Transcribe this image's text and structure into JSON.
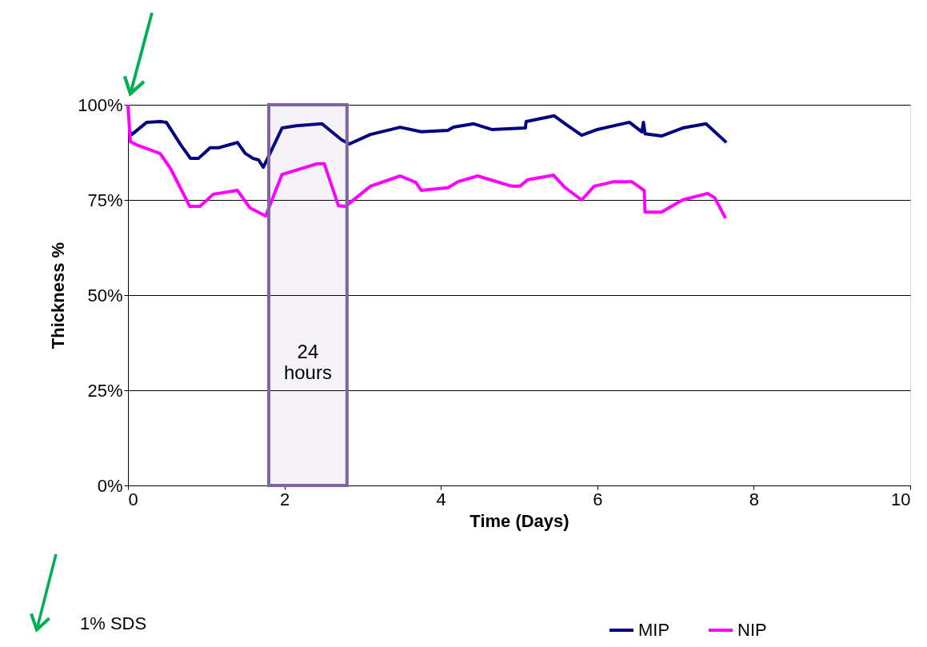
{
  "chart_data": {
    "type": "line",
    "xlabel": "Time (Days)",
    "ylabel": "Thickness %",
    "xlim": [
      0,
      10
    ],
    "xticks": [
      0,
      2,
      4,
      6,
      8,
      10
    ],
    "ylim": [
      0,
      100
    ],
    "yticks": [
      {
        "value": 0,
        "label": "0%"
      },
      {
        "value": 25,
        "label": "25%"
      },
      {
        "value": 50,
        "label": "50%"
      },
      {
        "value": 75,
        "label": "75%"
      },
      {
        "value": 100,
        "label": "100%"
      }
    ],
    "grid": "y",
    "legend": "bottom right",
    "line_style": "solid",
    "marker": "none",
    "series": [
      {
        "name": "MIP",
        "color": "#000080",
        "x": [
          0.02,
          0.05,
          0.24,
          0.41,
          0.49,
          0.68,
          0.8,
          0.9,
          1.05,
          1.16,
          1.4,
          1.5,
          1.6,
          1.67,
          1.73,
          1.79,
          1.97,
          2.15,
          2.48,
          2.73,
          2.83,
          3.1,
          3.48,
          3.75,
          4.09,
          4.16,
          4.42,
          4.65,
          5.08,
          5.09,
          5.45,
          5.59,
          5.8,
          6.0,
          6.41,
          6.57,
          6.59,
          6.61,
          6.82,
          7.09,
          7.39,
          7.65
        ],
        "values": [
          93,
          92.2,
          95.4,
          95.6,
          95.4,
          89.3,
          85.9,
          85.9,
          88.7,
          88.7,
          90.1,
          87.2,
          85.9,
          85.5,
          83.6,
          86.1,
          93.9,
          94.5,
          95,
          90.8,
          89.7,
          92.2,
          94.1,
          92.9,
          93.3,
          94.1,
          95,
          93.5,
          93.9,
          95.6,
          97.1,
          95,
          92,
          93.5,
          95.4,
          92.9,
          95.4,
          92.4,
          91.8,
          93.9,
          95,
          90.1
        ]
      },
      {
        "name": "NIP",
        "color": "#ff00ff",
        "x": [
          0,
          0.03,
          0.13,
          0.41,
          0.54,
          0.79,
          0.92,
          1.09,
          1.4,
          1.56,
          1.76,
          1.97,
          2.42,
          2.51,
          2.69,
          2.78,
          3.1,
          3.48,
          3.68,
          3.75,
          4.09,
          4.22,
          4.47,
          4.63,
          4.91,
          5.01,
          5.11,
          5.44,
          5.59,
          5.8,
          5.96,
          6.21,
          6.44,
          6.6,
          6.61,
          6.82,
          7.09,
          7.41,
          7.5,
          7.64
        ],
        "values": [
          100,
          90.3,
          89.3,
          87.2,
          83.4,
          73.3,
          73.3,
          76.5,
          77.5,
          72.9,
          70.8,
          81.7,
          84.5,
          84.5,
          73.5,
          73.3,
          78.6,
          81.3,
          79.6,
          77.5,
          78.2,
          79.8,
          81.3,
          80.3,
          78.6,
          78.6,
          80.3,
          81.5,
          78.2,
          75,
          78.6,
          79.8,
          79.8,
          77.5,
          71.8,
          71.8,
          75,
          76.7,
          75.6,
          70.2
        ]
      }
    ],
    "bands": [
      {
        "axis": "x",
        "from": 1.8,
        "to": 2.8,
        "label": "24\nhours",
        "color": "#8064a2"
      }
    ],
    "annotations": [
      "1% SDS"
    ]
  }
}
